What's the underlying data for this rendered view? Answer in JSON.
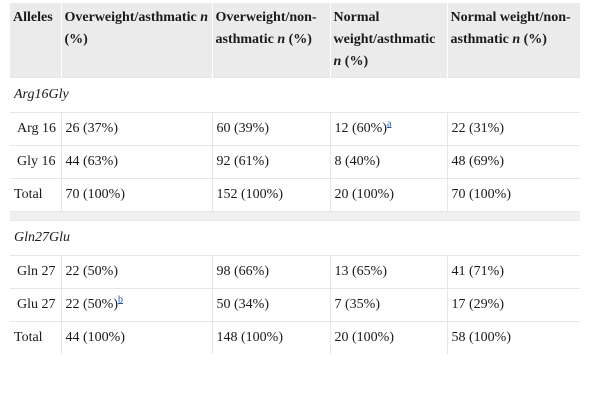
{
  "header": {
    "c0": "Alleles",
    "c1_main": "Overweight/asthmatic ",
    "c1_n": "n",
    "c1_pct": " (%)",
    "c2_main": "Overweight/non-asthmatic ",
    "c2_n": "n",
    "c2_pct": " (%)",
    "c3_main": "Normal weight/asthmatic ",
    "c3_n": "n",
    "c3_pct": " (%)",
    "c4_main": "Normal weight/non-asthmatic ",
    "c4_n": "n",
    "c4_pct": " (%)"
  },
  "group1": {
    "title": "Arg16Gly",
    "rows": [
      {
        "allele": "Arg 16",
        "c1": "26 (37%)",
        "c2": "60 (39%)",
        "c3": "12 (60%)",
        "c3_note": "a",
        "c4": "22 (31%)"
      },
      {
        "allele": "Gly 16",
        "c1": "44 (63%)",
        "c2": "92 (61%)",
        "c3": "8 (40%)",
        "c4": "48 (69%)"
      },
      {
        "allele": "Total",
        "c1": "70 (100%)",
        "c2": "152 (100%)",
        "c3": "20 (100%)",
        "c4": "70 (100%)"
      }
    ]
  },
  "group2": {
    "title": "Gln27Glu",
    "rows": [
      {
        "allele": "Gln 27",
        "c1": "22 (50%)",
        "c2": "98 (66%)",
        "c3": "13 (65%)",
        "c4": "41 (71%)"
      },
      {
        "allele": "Glu 27",
        "c1": "22 (50%)",
        "c1_note": "b",
        "c2": "50 (34%)",
        "c3": "7 (35%)",
        "c4": "17 (29%)"
      },
      {
        "allele": "Total",
        "c1": "44 (100%)",
        "c2": "148 (100%)",
        "c3": "20 (100%)",
        "c4": "58 (100%)"
      }
    ]
  }
}
